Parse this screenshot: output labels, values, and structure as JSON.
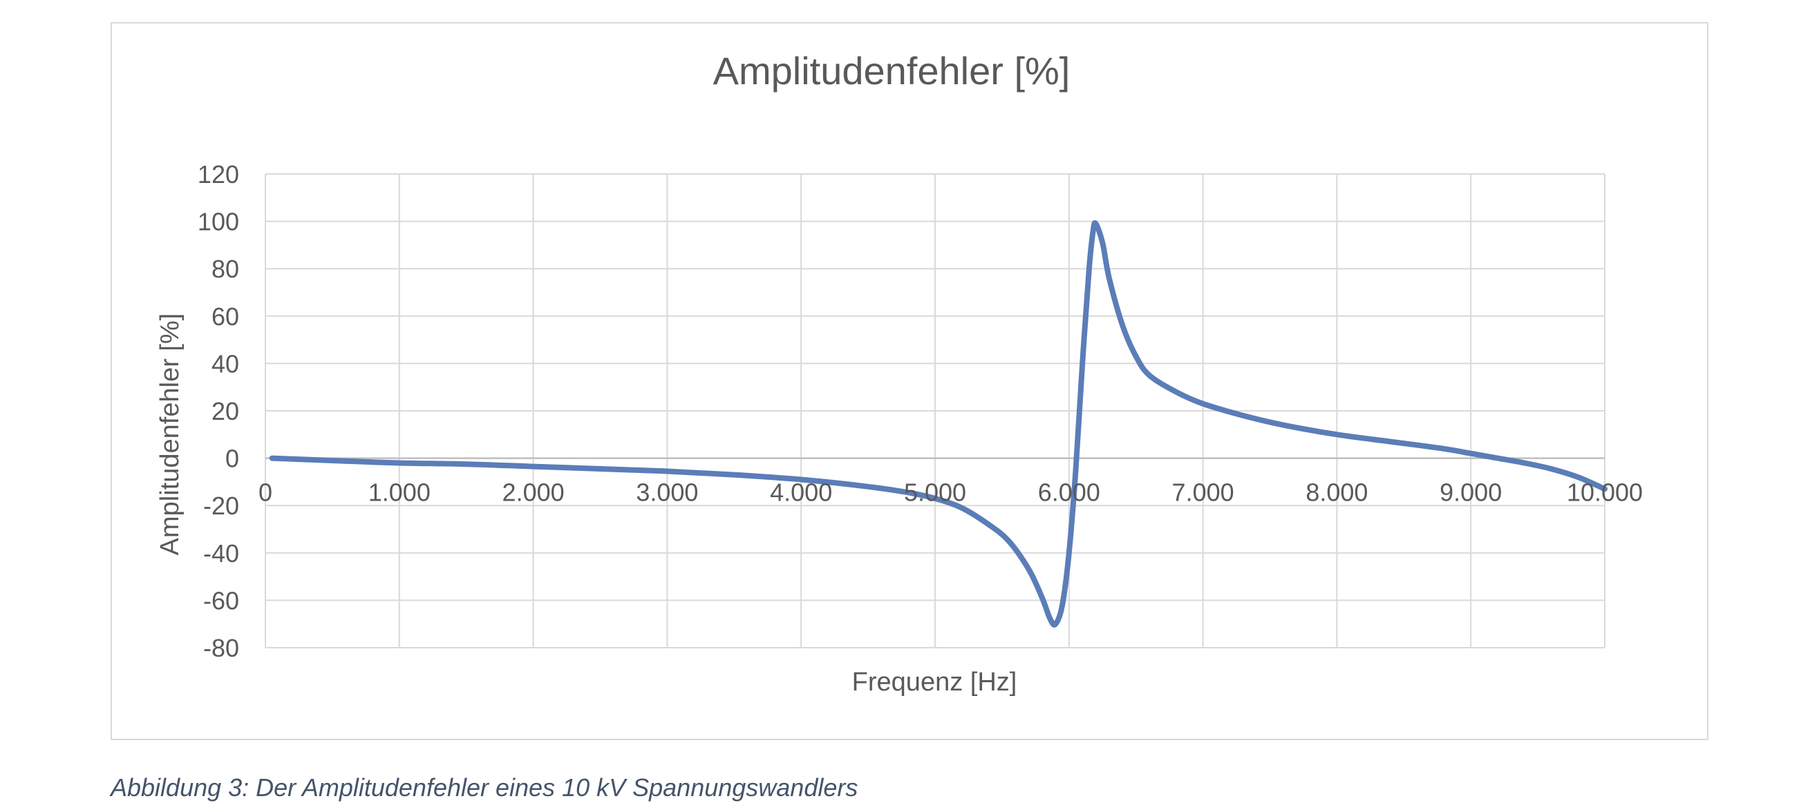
{
  "caption": "Abbildung 3: Der Amplitudenfehler eines 10 kV Spannungswandlers",
  "chart_data": {
    "type": "line",
    "title": "Amplitudenfehler [%]",
    "xlabel": "Frequenz [Hz]",
    "ylabel": "Amplitudenfehler [%]",
    "xlim": [
      0,
      10000
    ],
    "ylim": [
      -80,
      120
    ],
    "x_ticks": [
      0,
      1000,
      2000,
      3000,
      4000,
      5000,
      6000,
      7000,
      8000,
      9000,
      10000
    ],
    "x_tick_labels": [
      "0",
      "1.000",
      "2.000",
      "3.000",
      "4.000",
      "5.000",
      "6.000",
      "7.000",
      "8.000",
      "9.000",
      "10.000"
    ],
    "y_ticks": [
      -80,
      -60,
      -40,
      -20,
      0,
      20,
      40,
      60,
      80,
      100,
      120
    ],
    "y_tick_labels": [
      "-80",
      "-60",
      "-40",
      "-20",
      "0",
      "20",
      "40",
      "60",
      "80",
      "100",
      "120"
    ],
    "grid": true,
    "legend": "none",
    "series_color": "#5b7db8",
    "series": [
      {
        "x": [
          50,
          500,
          1000,
          1500,
          2000,
          2500,
          3000,
          3500,
          4000,
          4500,
          4800,
          5000,
          5200,
          5400,
          5550,
          5700,
          5800,
          5860,
          5900,
          5950,
          6000,
          6050,
          6100,
          6150,
          6180,
          6200,
          6250,
          6300,
          6400,
          6500,
          6600,
          6800,
          7000,
          7300,
          7600,
          8000,
          8400,
          8800,
          9000,
          9200,
          9400,
          9600,
          9800,
          10000
        ],
        "y": [
          0,
          -1,
          -2,
          -2.5,
          -3.5,
          -4.5,
          -5.5,
          -7,
          -9,
          -12,
          -14.5,
          -17,
          -21,
          -28,
          -35,
          -47,
          -59,
          -68,
          -70,
          -62,
          -40,
          -5,
          40,
          80,
          96,
          99,
          91,
          76,
          56,
          43,
          35,
          28,
          23,
          18,
          14,
          10,
          7,
          4,
          2,
          0,
          -2,
          -4.5,
          -8,
          -13
        ]
      }
    ]
  }
}
